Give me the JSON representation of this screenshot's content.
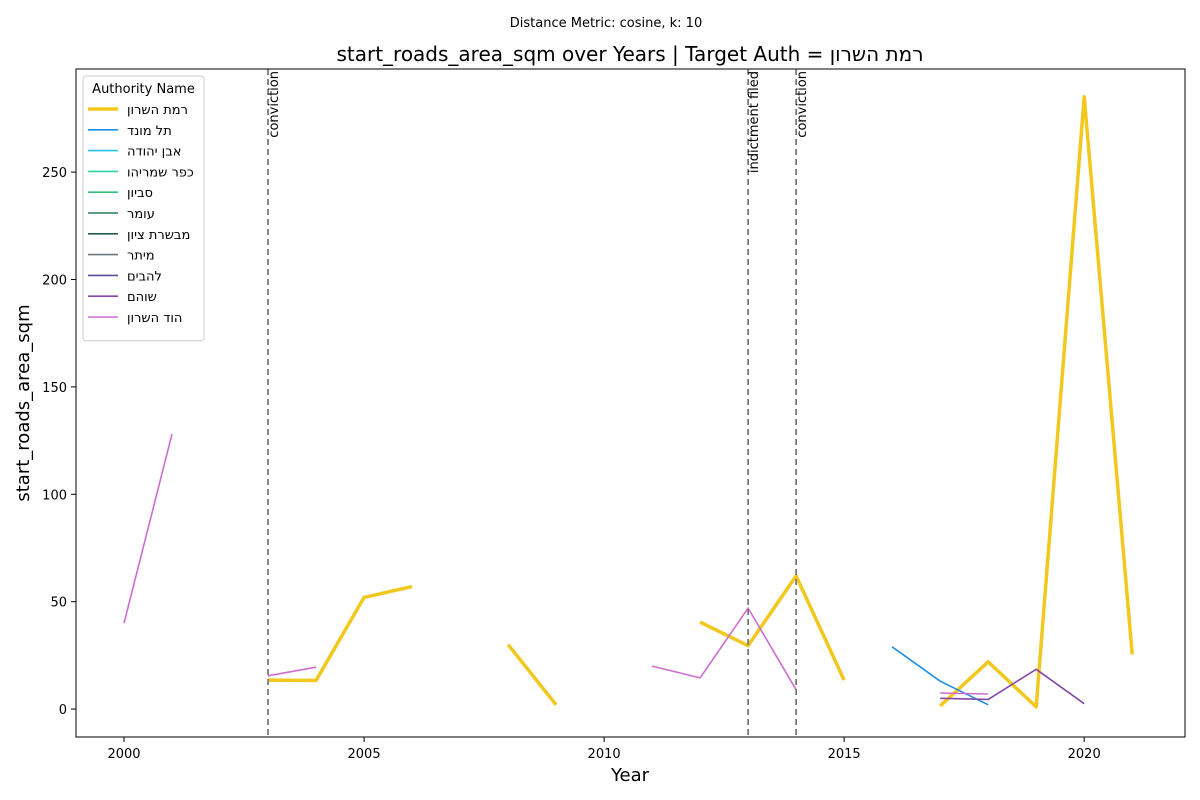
{
  "suptitle": "Distance Metric: cosine, k: 10",
  "chart_data": {
    "type": "line",
    "title": "start_roads_area_sqm over Years | Target Auth = רמת השרון",
    "xlabel": "Year",
    "ylabel": "start_roads_area_sqm",
    "xlim": [
      1999,
      2022.1
    ],
    "ylim": [
      -13,
      298
    ],
    "xticks": [
      2000,
      2005,
      2010,
      2015,
      2020
    ],
    "yticks": [
      0,
      50,
      100,
      150,
      200,
      250
    ],
    "grid": false,
    "legend": {
      "title": "Authority Name",
      "placement": "top-left",
      "entries": [
        {
          "name": "רמת השרון",
          "color": "#f2c81e",
          "bold": true
        },
        {
          "name": "תל מונד",
          "color": "#1f8fe5"
        },
        {
          "name": "אבן יהודה",
          "color": "#25c2ea"
        },
        {
          "name": "כפר שמריהו",
          "color": "#2ed3a8"
        },
        {
          "name": "סביון",
          "color": "#33c07a"
        },
        {
          "name": "עומר",
          "color": "#2d7a57"
        },
        {
          "name": "מבשרת ציון",
          "color": "#2b5a50"
        },
        {
          "name": "מיתר",
          "color": "#6e7a7a"
        },
        {
          "name": "להבים",
          "color": "#5b4f96"
        },
        {
          "name": "שוהם",
          "color": "#8548a6"
        },
        {
          "name": "הוד השרון",
          "color": "#cf6dcf"
        }
      ]
    },
    "series": [
      {
        "name": "רמת השרון",
        "color": "#f2c81e",
        "bold": true,
        "segments": [
          [
            [
              2003,
              13.5
            ],
            [
              2004,
              13.3
            ],
            [
              2005,
              52
            ],
            [
              2006,
              57
            ]
          ],
          [
            [
              2008,
              30
            ],
            [
              2009,
              2
            ]
          ],
          [
            [
              2012,
              40.5
            ],
            [
              2013,
              29.5
            ],
            [
              2014,
              62
            ],
            [
              2015,
              13.5
            ]
          ],
          [
            [
              2017,
              1.5
            ],
            [
              2018,
              22
            ],
            [
              2019,
              1
            ],
            [
              2020,
              285
            ],
            [
              2021,
              25.5
            ]
          ]
        ]
      },
      {
        "name": "תל מונד",
        "color": "#1f8fe5",
        "segments": [
          [
            [
              2016,
              29
            ],
            [
              2017,
              13
            ],
            [
              2018,
              2
            ]
          ]
        ]
      },
      {
        "name": "שוהם",
        "color": "#8548a6",
        "segments": [
          [
            [
              2017,
              5
            ],
            [
              2018,
              4.5
            ],
            [
              2019,
              18.5
            ],
            [
              2020,
              2.5
            ]
          ]
        ]
      },
      {
        "name": "הוד השרון",
        "color": "#cf6dcf",
        "segments": [
          [
            [
              2000,
              40
            ],
            [
              2001,
              128
            ]
          ],
          [
            [
              2003,
              15.5
            ],
            [
              2004,
              19.5
            ]
          ],
          [
            [
              2011,
              20
            ],
            [
              2012,
              14.5
            ],
            [
              2013,
              47
            ],
            [
              2014,
              9
            ]
          ],
          [
            [
              2017,
              7.5
            ],
            [
              2018,
              7
            ]
          ]
        ]
      }
    ],
    "events": [
      {
        "x": 2003,
        "label": "conviction"
      },
      {
        "x": 2013,
        "label": "indictment filed"
      },
      {
        "x": 2014,
        "label": "conviction"
      }
    ]
  }
}
